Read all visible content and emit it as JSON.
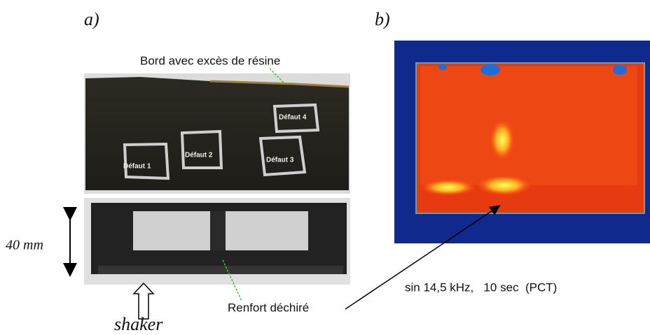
{
  "panels": {
    "a": {
      "label": "a)",
      "callout_top": "Bord avec excès de résine",
      "defects": [
        "Défaut 1",
        "Défaut 2",
        "Défaut 3",
        "Défaut 4"
      ],
      "dimension": "40 mm",
      "excitation": "shaker",
      "callout_bottom": "Renfort déchiré"
    },
    "b": {
      "label": "b)",
      "caption": "sin 14,5 kHz,   10 sec  (PCT)"
    }
  }
}
